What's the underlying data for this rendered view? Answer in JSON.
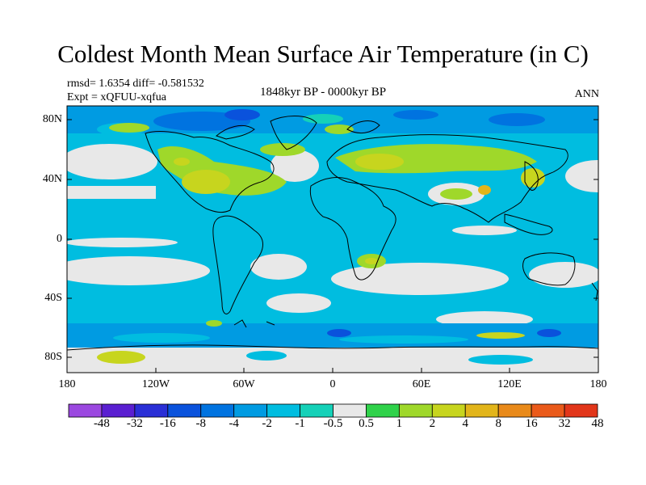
{
  "title": "Coldest Month Mean Surface Air Temperature (in C)",
  "stats": {
    "rmsd_diff": "rmsd= 1.6354 diff= -0.581532",
    "experiment": "Expt = xQFUU-xqfua",
    "period": "1848kyr BP - 0000kyr BP",
    "season": "ANN"
  },
  "axes": {
    "y_ticks": [
      "80N",
      "40N",
      "0",
      "40S",
      "80S"
    ],
    "x_ticks": [
      "180",
      "120W",
      "60W",
      "0",
      "60E",
      "120E",
      "180"
    ]
  },
  "colorbar": {
    "labels": [
      "-48",
      "-32",
      "-16",
      "-8",
      "-4",
      "-2",
      "-1",
      "-0.5",
      "0.5",
      "1",
      "2",
      "4",
      "8",
      "16",
      "32",
      "48"
    ],
    "colors": [
      "#9b48e0",
      "#5a1fd1",
      "#2a2fd6",
      "#0a52dc",
      "#0073e0",
      "#009be2",
      "#00bde0",
      "#15d1b8",
      "#e8e8e8",
      "#2fd24a",
      "#9fd82a",
      "#c7d51e",
      "#e2b51a",
      "#e98a1a",
      "#ea5a1a",
      "#e2361a"
    ]
  }
}
